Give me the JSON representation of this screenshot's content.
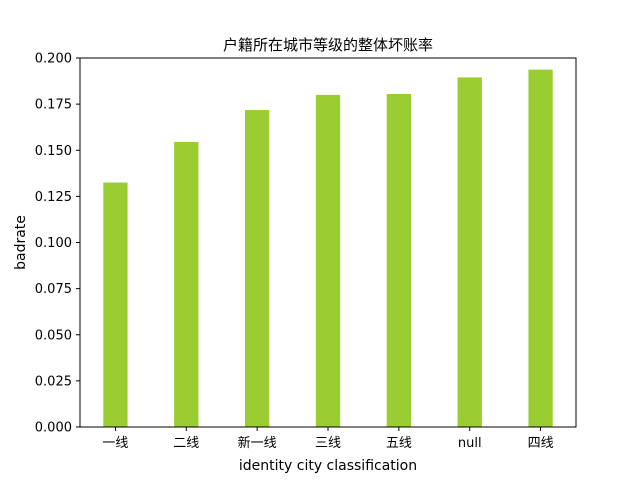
{
  "chart_data": {
    "type": "bar",
    "title": "户籍所在城市等级的整体坏账率",
    "xlabel": "identity city classification",
    "ylabel": "badrate",
    "categories": [
      "一线",
      "二线",
      "新一线",
      "三线",
      "五线",
      "null",
      "四线"
    ],
    "values": [
      0.1325,
      0.1545,
      0.1718,
      0.18,
      0.1805,
      0.1895,
      0.1937
    ],
    "ylim": [
      0,
      0.2
    ],
    "yticks": [
      "0.000",
      "0.025",
      "0.050",
      "0.075",
      "0.100",
      "0.125",
      "0.150",
      "0.175",
      "0.200"
    ],
    "bar_color": "#9acd32",
    "grid": false,
    "legend": "none"
  }
}
